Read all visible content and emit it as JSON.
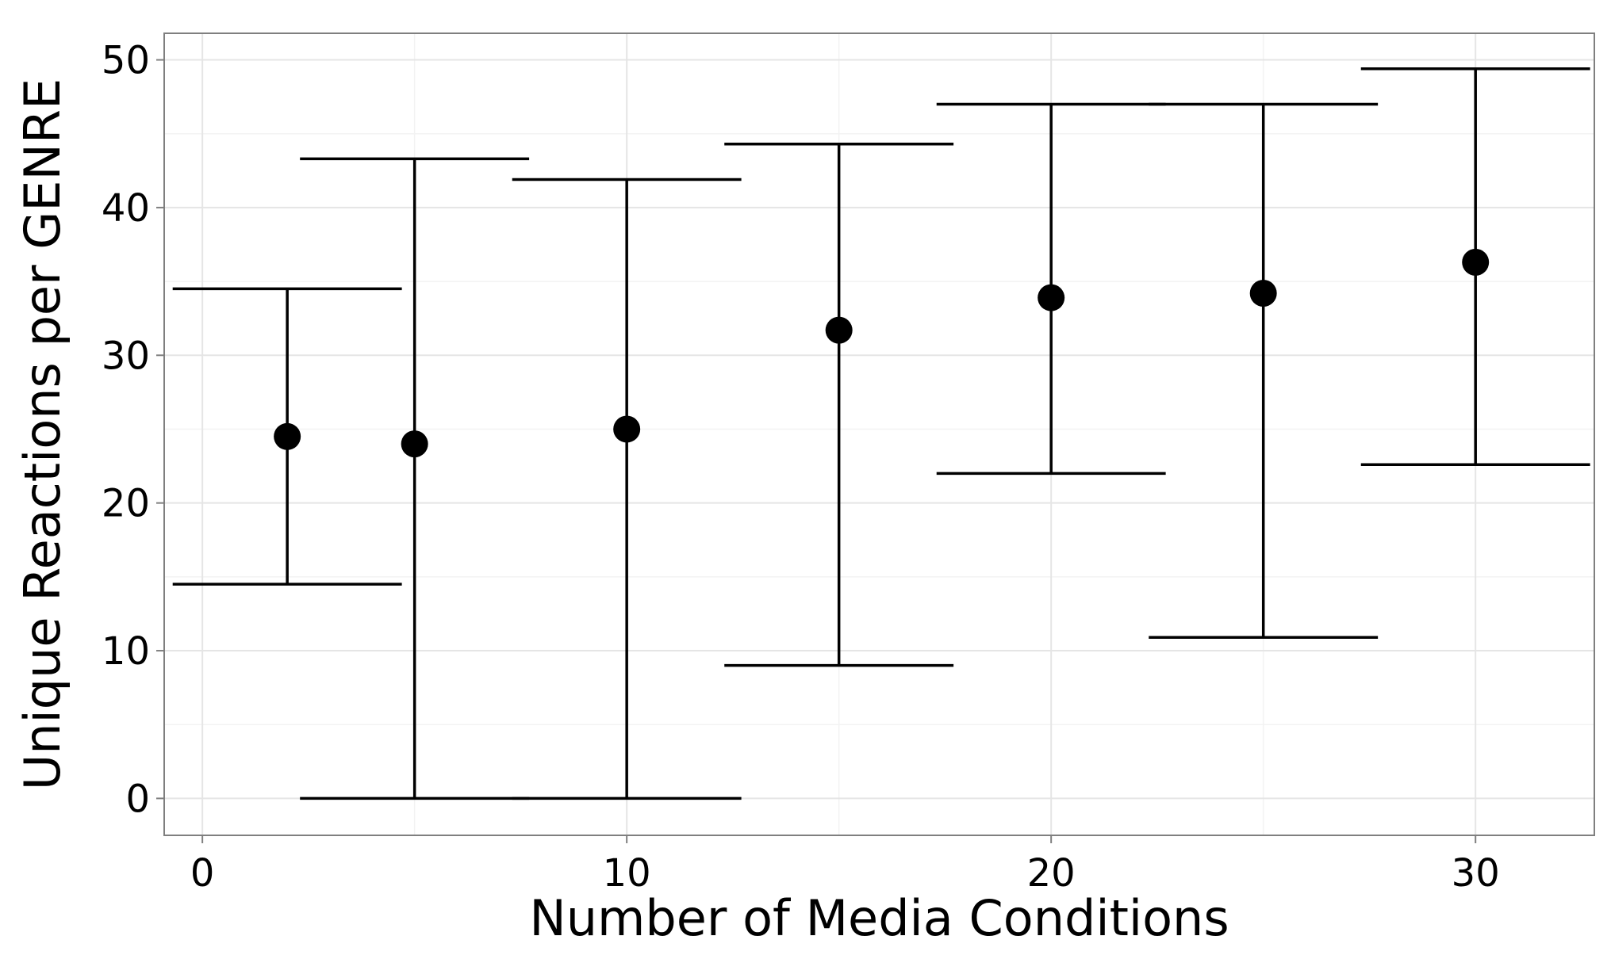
{
  "chart_data": {
    "type": "scatter",
    "title": "",
    "xlabel": "Number of Media Conditions",
    "ylabel": "Unique Reactions per GENRE",
    "xlim": [
      -0.9,
      32.8
    ],
    "ylim": [
      -2.5,
      51.8
    ],
    "x_ticks": [
      0,
      10,
      20,
      30
    ],
    "x_tick_labels": [
      "0",
      "10",
      "20",
      "30"
    ],
    "y_ticks": [
      0,
      10,
      20,
      30,
      40,
      50
    ],
    "y_tick_labels": [
      "0",
      "10",
      "20",
      "30",
      "40",
      "50"
    ],
    "grid": true,
    "legend": "none",
    "error_bar_half_width": 2.7,
    "points": [
      {
        "x": 2,
        "y": 24.5,
        "ymin": 14.5,
        "ymax": 34.5
      },
      {
        "x": 5,
        "y": 24.0,
        "ymin": 0.0,
        "ymax": 43.3
      },
      {
        "x": 10,
        "y": 25.0,
        "ymin": 0.0,
        "ymax": 41.9
      },
      {
        "x": 15,
        "y": 31.7,
        "ymin": 9.0,
        "ymax": 44.3
      },
      {
        "x": 20,
        "y": 33.9,
        "ymin": 22.0,
        "ymax": 47.0
      },
      {
        "x": 25,
        "y": 34.2,
        "ymin": 10.9,
        "ymax": 47.0
      },
      {
        "x": 30,
        "y": 36.3,
        "ymin": 22.6,
        "ymax": 49.4
      }
    ],
    "colors": {
      "panel_border": "#7f7f7f",
      "grid_major": "#e5e5e5",
      "grid_minor": "#f3f3f3",
      "marks": "#000000",
      "tick": "#7f7f7f"
    }
  }
}
